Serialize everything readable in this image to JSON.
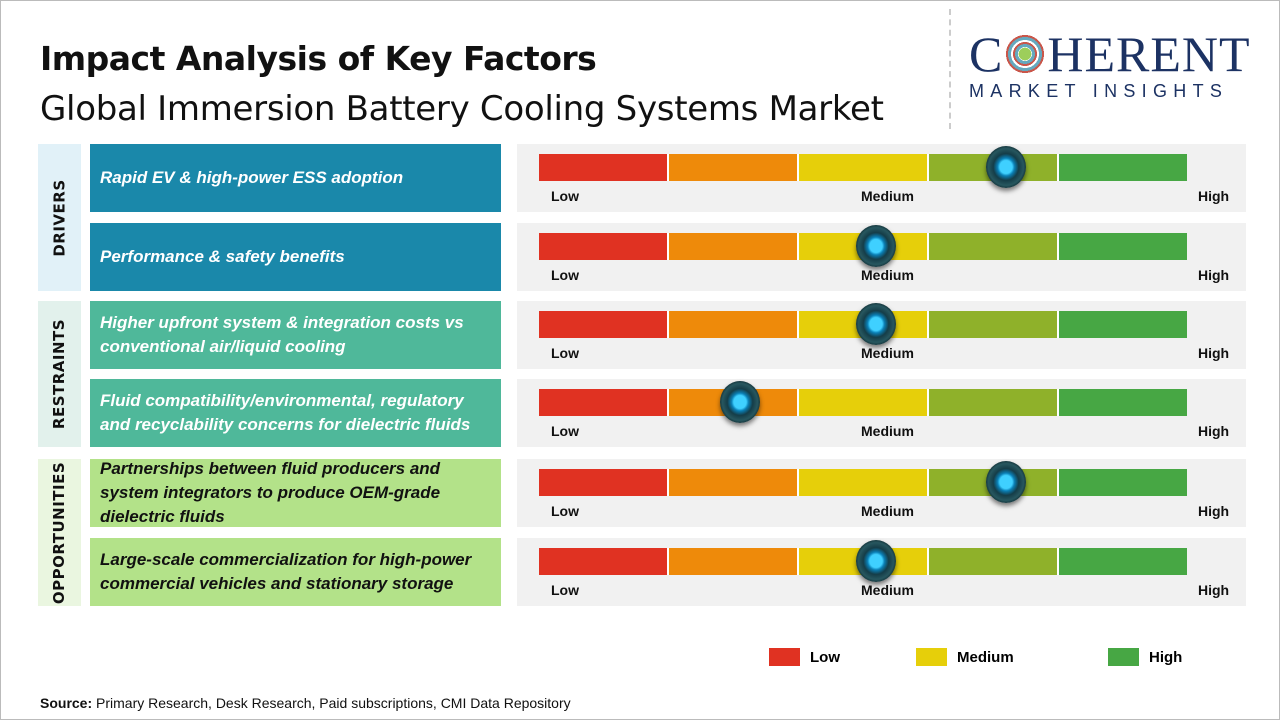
{
  "header": {
    "title": "Impact Analysis of Key Factors",
    "subtitle": "Global Immersion Battery Cooling Systems Market"
  },
  "logo": {
    "main_left": "C",
    "main_right": "HERENT",
    "sub": "MARKET INSIGHTS"
  },
  "scale_labels": {
    "low": "Low",
    "medium": "Medium",
    "high": "High"
  },
  "segment_colors": [
    "#e03222",
    "#ee8a0a",
    "#e6cf0a",
    "#8fb12a",
    "#47a744"
  ],
  "categories": [
    {
      "label": "DRIVERS",
      "bg": "#e1f1f8",
      "box_color": "#1a88aa",
      "text_color": "#ffffff",
      "factors": [
        {
          "text": "Rapid EV & high-power ESS adoption",
          "level": 0.72
        },
        {
          "text": "Performance & safety benefits",
          "level": 0.52
        }
      ]
    },
    {
      "label": "RESTRAINTS",
      "bg": "#e2f1ec",
      "box_color": "#4fb89a",
      "text_color": "#ffffff",
      "factors": [
        {
          "text": "Higher upfront system & integration costs vs conventional air/liquid cooling",
          "level": 0.52
        },
        {
          "text": "Fluid compatibility/environmental, regulatory and recyclability concerns for dielectric fluids",
          "level": 0.31
        }
      ]
    },
    {
      "label": "OPPORTUNITIES",
      "bg": "#eaf6e0",
      "box_color": "#b3e289",
      "text_color": "#111111",
      "factors": [
        {
          "text": "Partnerships between fluid producers and system integrators to produce OEM-grade dielectric fluids",
          "level": 0.72
        },
        {
          "text": "Large-scale commercialization for high-power commercial vehicles and stationary storage",
          "level": 0.52
        }
      ]
    }
  ],
  "legend": [
    {
      "label": "Low",
      "color": "#e03222"
    },
    {
      "label": "Medium",
      "color": "#e6cf0a"
    },
    {
      "label": "High",
      "color": "#47a744"
    }
  ],
  "source": {
    "label": "Source:",
    "text": " Primary Research, Desk Research, Paid subscriptions, CMI Data Repository"
  }
}
